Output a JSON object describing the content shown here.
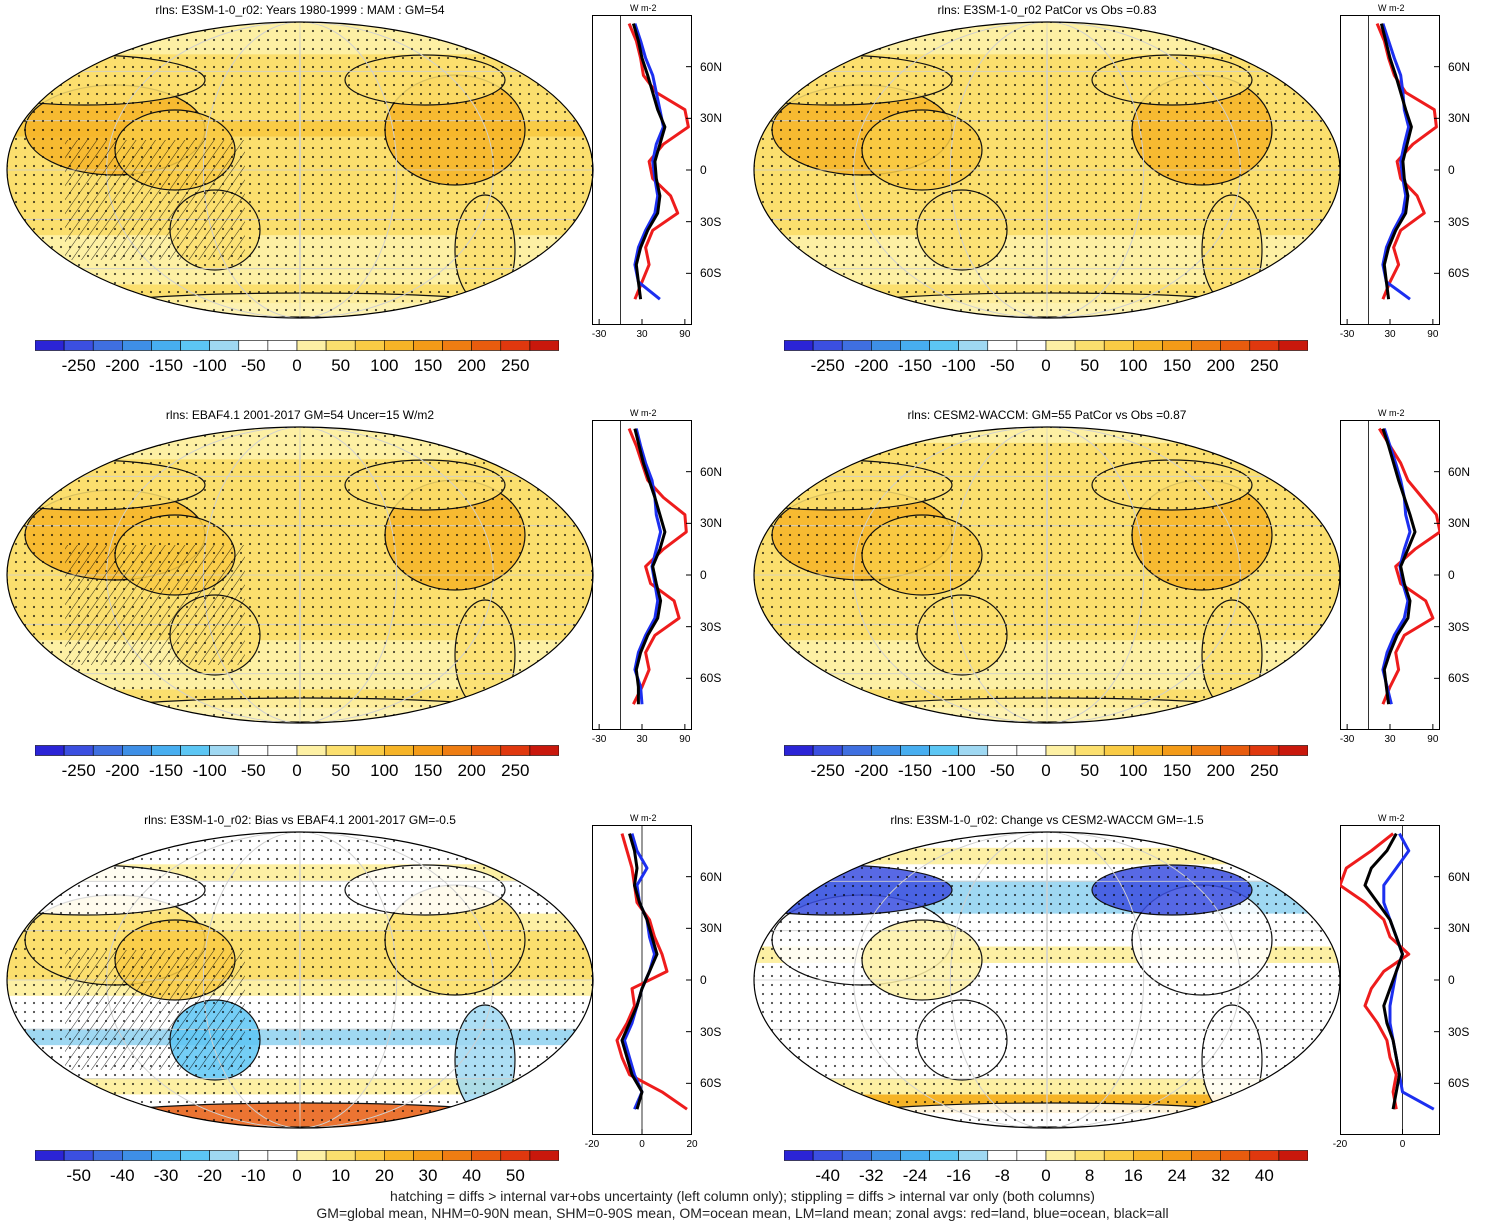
{
  "colors": {
    "palette": [
      "#2b24d6",
      "#3b4fe0",
      "#3f6fe0",
      "#3e8fe6",
      "#47aef0",
      "#5cc6f4",
      "#9fd8f2",
      "#ffffff",
      "#ffffff",
      "#fdf0a4",
      "#fbdf6e",
      "#f9cb45",
      "#f6b427",
      "#f39b18",
      "#ee7d12",
      "#e85c0e",
      "#e0380e",
      "#c9180c"
    ],
    "land_zonal": "#ee1c1c",
    "ocean_zonal": "#1c2ff0",
    "all_zonal": "#000000",
    "grid": "#cfcfcf"
  },
  "chart_data": [
    {
      "type": "heatmap",
      "title": "rlns: E3SM-1-0_r02: Years 1980-1999 : MAM : GM=54",
      "colorbar_ticks": [
        "-250",
        "-200",
        "-150",
        "-100",
        "-50",
        "0",
        "50",
        "100",
        "150",
        "200",
        "250"
      ],
      "hatching": true,
      "stippling": true,
      "field_level": 0.62,
      "zonal": {
        "x_ticks": [
          "-30",
          "30",
          "90"
        ],
        "xlim": [
          -40,
          100
        ],
        "lat_ticks": [
          "60N",
          "30N",
          "0",
          "30S",
          "60S"
        ],
        "unit": "W m-2",
        "lat": [
          85,
          75,
          65,
          55,
          45,
          35,
          25,
          15,
          5,
          -5,
          -15,
          -25,
          -35,
          -45,
          -55,
          -65,
          -75
        ],
        "all": [
          18,
          25,
          30,
          38,
          45,
          52,
          62,
          55,
          48,
          50,
          55,
          52,
          38,
          28,
          22,
          25,
          28
        ],
        "land": [
          12,
          22,
          28,
          32,
          50,
          90,
          95,
          60,
          40,
          45,
          70,
          80,
          45,
          35,
          40,
          30,
          20
        ],
        "ocean": [
          20,
          28,
          35,
          45,
          50,
          55,
          60,
          50,
          45,
          48,
          52,
          48,
          35,
          25,
          20,
          25,
          55
        ]
      }
    },
    {
      "type": "heatmap",
      "title": "rlns: E3SM-1-0_r02 PatCor vs Obs =0.83",
      "colorbar_ticks": [
        "-250",
        "-200",
        "-150",
        "-100",
        "-50",
        "0",
        "50",
        "100",
        "150",
        "200",
        "250"
      ],
      "hatching": false,
      "stippling": true,
      "field_level": 0.6,
      "zonal": {
        "x_ticks": [
          "-30",
          "30",
          "90"
        ],
        "xlim": [
          -40,
          100
        ],
        "lat_ticks": [
          "60N",
          "30N",
          "0",
          "30S",
          "60S"
        ],
        "unit": "W m-2",
        "lat": [
          85,
          75,
          65,
          55,
          45,
          35,
          25,
          15,
          5,
          -5,
          -15,
          -25,
          -35,
          -45,
          -55,
          -65,
          -75
        ],
        "all": [
          18,
          24,
          30,
          38,
          45,
          52,
          60,
          54,
          48,
          50,
          55,
          52,
          38,
          28,
          22,
          25,
          28
        ],
        "land": [
          12,
          22,
          28,
          36,
          52,
          92,
          95,
          62,
          40,
          45,
          68,
          78,
          45,
          35,
          42,
          30,
          20
        ],
        "ocean": [
          20,
          28,
          36,
          45,
          48,
          50,
          56,
          50,
          45,
          48,
          52,
          48,
          35,
          25,
          20,
          25,
          58
        ]
      }
    },
    {
      "type": "heatmap",
      "title": "rlns: EBAF4.1 2001-2017 GM=54 Uncer=15 W/m2",
      "colorbar_ticks": [
        "-250",
        "-200",
        "-150",
        "-100",
        "-50",
        "0",
        "50",
        "100",
        "150",
        "200",
        "250"
      ],
      "hatching": true,
      "stippling": true,
      "field_level": 0.62,
      "zonal": {
        "x_ticks": [
          "-30",
          "30",
          "90"
        ],
        "xlim": [
          -40,
          100
        ],
        "lat_ticks": [
          "60N",
          "30N",
          "0",
          "30S",
          "60S"
        ],
        "unit": "W m-2",
        "lat": [
          85,
          75,
          65,
          55,
          45,
          35,
          25,
          15,
          5,
          -5,
          -15,
          -25,
          -35,
          -45,
          -55,
          -65,
          -75
        ],
        "all": [
          20,
          26,
          32,
          40,
          48,
          55,
          62,
          55,
          45,
          50,
          56,
          52,
          38,
          28,
          22,
          25,
          25
        ],
        "land": [
          12,
          22,
          30,
          38,
          60,
          90,
          92,
          60,
          35,
          42,
          75,
          82,
          48,
          35,
          40,
          30,
          18
        ],
        "ocean": [
          22,
          28,
          35,
          44,
          48,
          50,
          56,
          50,
          44,
          48,
          52,
          48,
          35,
          25,
          20,
          28,
          30
        ]
      }
    },
    {
      "type": "heatmap",
      "title": "rlns: CESM2-WACCM: GM=55 PatCor vs Obs =0.87",
      "colorbar_ticks": [
        "-250",
        "-200",
        "-150",
        "-100",
        "-50",
        "0",
        "50",
        "100",
        "150",
        "200",
        "250"
      ],
      "hatching": false,
      "stippling": true,
      "field_level": 0.6,
      "zonal": {
        "x_ticks": [
          "-30",
          "30",
          "90"
        ],
        "xlim": [
          -40,
          100
        ],
        "lat_ticks": [
          "60N",
          "30N",
          "0",
          "30S",
          "60S"
        ],
        "unit": "W m-2",
        "lat": [
          85,
          75,
          65,
          55,
          45,
          35,
          25,
          15,
          5,
          -5,
          -15,
          -25,
          -35,
          -45,
          -55,
          -65,
          -75
        ],
        "all": [
          20,
          28,
          35,
          42,
          50,
          58,
          65,
          55,
          45,
          50,
          58,
          55,
          40,
          30,
          22,
          25,
          28
        ],
        "land": [
          15,
          30,
          45,
          55,
          75,
          95,
          100,
          65,
          38,
          45,
          80,
          90,
          50,
          38,
          42,
          30,
          20
        ],
        "ocean": [
          22,
          30,
          38,
          45,
          50,
          52,
          58,
          50,
          44,
          48,
          55,
          50,
          36,
          26,
          20,
          26,
          32
        ]
      }
    },
    {
      "type": "heatmap",
      "title": "rlns: E3SM-1-0_r02: Bias vs EBAF4.1 2001-2017 GM=-0.5",
      "colorbar_ticks": [
        "-50",
        "-40",
        "-30",
        "-20",
        "-10",
        "0",
        "10",
        "20",
        "30",
        "40",
        "50"
      ],
      "hatching": true,
      "stippling": true,
      "field_level": 0.45,
      "zonal": {
        "x_ticks": [
          "-20",
          "0",
          "20"
        ],
        "xlim": [
          -20,
          20
        ],
        "lat_ticks": [
          "60N",
          "30N",
          "0",
          "30S",
          "60S"
        ],
        "unit": "W m-2",
        "lat": [
          85,
          75,
          65,
          55,
          45,
          35,
          25,
          15,
          5,
          -5,
          -15,
          -25,
          -35,
          -45,
          -55,
          -65,
          -75
        ],
        "all": [
          -5,
          -3,
          -2,
          -3,
          -1,
          2,
          4,
          6,
          3,
          0,
          -2,
          -5,
          -8,
          -6,
          -4,
          0,
          -2
        ],
        "land": [
          -8,
          -6,
          -4,
          -3,
          -2,
          3,
          5,
          8,
          10,
          -4,
          -3,
          -6,
          -10,
          -8,
          -5,
          8,
          18
        ],
        "ocean": [
          -4,
          -2,
          2,
          -2,
          -1,
          2,
          3,
          5,
          3,
          0,
          -2,
          -4,
          -7,
          -5,
          -3,
          0,
          -3
        ]
      }
    },
    {
      "type": "heatmap",
      "title": "rlns: E3SM-1-0_r02: Change vs CESM2-WACCM GM=-1.5",
      "colorbar_ticks": [
        "-40",
        "-32",
        "-24",
        "-16",
        "-8",
        "0",
        "8",
        "16",
        "24",
        "32",
        "40"
      ],
      "hatching": false,
      "stippling": true,
      "field_level": 0.42,
      "zonal": {
        "x_ticks": [
          "-20",
          "0"
        ],
        "xlim": [
          -20,
          12
        ],
        "lat_ticks": [
          "60N",
          "30N",
          "0",
          "30S",
          "60S"
        ],
        "unit": "W m-2",
        "lat": [
          85,
          75,
          65,
          55,
          45,
          35,
          25,
          15,
          5,
          -5,
          -15,
          -25,
          -35,
          -45,
          -55,
          -65,
          -75
        ],
        "all": [
          -2,
          -5,
          -10,
          -12,
          -8,
          -4,
          -2,
          0,
          -2,
          -4,
          -6,
          -5,
          -3,
          -2,
          -1,
          -2,
          -3
        ],
        "land": [
          -3,
          -10,
          -18,
          -20,
          -12,
          -6,
          -4,
          2,
          -6,
          -10,
          -12,
          -8,
          -5,
          -4,
          -2,
          -3,
          -2
        ],
        "ocean": [
          -1,
          2,
          -2,
          -6,
          -6,
          -4,
          -2,
          0,
          -2,
          -3,
          -4,
          -4,
          -3,
          -2,
          -1,
          0,
          10
        ]
      }
    }
  ],
  "footer": {
    "line1": "hatching = diffs > internal var+obs uncertainty (left column only); stippling = diffs > internal var only (both columns)",
    "line2": "GM=global mean, NHM=0-90N mean, SHM=0-90S mean, OM=ocean mean, LM=land mean; zonal avgs: red=land, blue=ocean, black=all"
  }
}
